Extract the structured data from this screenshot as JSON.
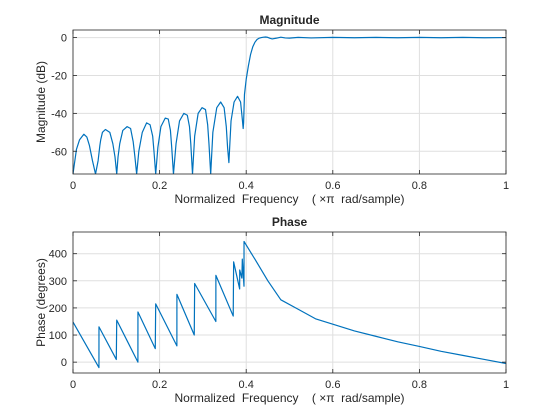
{
  "chart_data": [
    {
      "type": "line",
      "title": "Magnitude",
      "xlabel": "Normalized  Frequency    ( ×π  rad/sample)",
      "ylabel": "Magnitude (dB)",
      "xlim": [
        0,
        1
      ],
      "ylim": [
        -72,
        4
      ],
      "xticks": [
        0,
        0.2,
        0.4,
        0.6,
        0.8,
        1
      ],
      "xtick_labels": [
        "0",
        "0.2",
        "0.4",
        "0.6",
        "0.8",
        "1"
      ],
      "yticks": [
        0,
        -20,
        -40,
        -60
      ],
      "ytick_labels": [
        "0",
        "-20",
        "-40",
        "-60"
      ],
      "grid": true,
      "color": "#0072BD",
      "series": [
        {
          "x": [
            0,
            0.003,
            0.008,
            0.015,
            0.025,
            0.032,
            0.038,
            0.045,
            0.052,
            0.058,
            0.062,
            0.064,
            0.068,
            0.075,
            0.085,
            0.092,
            0.097,
            0.101,
            0.104,
            0.108,
            0.115,
            0.125,
            0.133,
            0.139,
            0.143,
            0.147,
            0.152,
            0.16,
            0.17,
            0.178,
            0.184,
            0.187,
            0.191,
            0.196,
            0.203,
            0.213,
            0.22,
            0.225,
            0.228,
            0.232,
            0.238,
            0.246,
            0.256,
            0.264,
            0.269,
            0.272,
            0.276,
            0.281,
            0.289,
            0.298,
            0.306,
            0.311,
            0.314,
            0.318,
            0.323,
            0.332,
            0.341,
            0.349,
            0.354,
            0.357,
            0.36,
            0.365,
            0.372,
            0.38,
            0.387,
            0.391,
            0.393,
            0.394,
            0.396,
            0.4,
            0.405,
            0.41,
            0.415,
            0.42,
            0.425,
            0.43,
            0.435,
            0.44,
            0.445,
            0.45,
            0.455,
            0.46,
            0.47,
            0.48,
            0.49,
            0.5,
            0.52,
            0.55,
            0.6,
            0.65,
            0.7,
            0.75,
            0.8,
            0.85,
            0.9,
            0.95,
            1.0
          ],
          "y": [
            -72,
            -67,
            -59,
            -54,
            -51,
            -52.5,
            -57,
            -65,
            -72,
            -65,
            -57,
            -54,
            -50,
            -48.5,
            -50,
            -56,
            -63,
            -72,
            -63,
            -56,
            -49,
            -47,
            -48,
            -55,
            -63,
            -72,
            -60,
            -50,
            -45,
            -46,
            -52,
            -60,
            -72,
            -58,
            -47,
            -42.5,
            -43,
            -49,
            -58,
            -72,
            -56,
            -44,
            -40,
            -41,
            -47,
            -56,
            -72,
            -52,
            -40,
            -37,
            -38,
            -46,
            -56,
            -72,
            -50,
            -37,
            -34,
            -37,
            -47,
            -58,
            -66,
            -44,
            -34,
            -31,
            -34,
            -43,
            -48,
            -45,
            -30,
            -22,
            -15,
            -9,
            -5,
            -2.5,
            -1,
            -0.3,
            0,
            0.2,
            0.3,
            0.1,
            -0.4,
            -0.7,
            -0.3,
            0.2,
            -0.2,
            -0.3,
            0.1,
            -0.2,
            0.1,
            -0.1,
            0.1,
            -0.1,
            0.1,
            -0.1,
            0.1,
            -0.1,
            0
          ]
        }
      ]
    },
    {
      "type": "line",
      "title": "Phase",
      "xlabel": "Normalized  Frequency    ( ×π  rad/sample)",
      "ylabel": "Phase (degrees)",
      "xlim": [
        0,
        1
      ],
      "ylim": [
        -40,
        480
      ],
      "xticks": [
        0,
        0.2,
        0.4,
        0.6,
        0.8,
        1
      ],
      "xtick_labels": [
        "0",
        "0.2",
        "0.4",
        "0.6",
        "0.8",
        "1"
      ],
      "yticks": [
        0,
        100,
        200,
        300,
        400
      ],
      "ytick_labels": [
        "0",
        "100",
        "200",
        "300",
        "400"
      ],
      "grid": true,
      "color": "#0072BD",
      "series": [
        {
          "x": [
            0,
            0.0599,
            0.06,
            0.1,
            0.101,
            0.1499,
            0.15,
            0.19,
            0.191,
            0.2399,
            0.24,
            0.28,
            0.281,
            0.3299,
            0.33,
            0.37,
            0.371,
            0.3849,
            0.385,
            0.39,
            0.391,
            0.3949,
            0.395,
            0.42,
            0.45,
            0.48,
            0.52,
            0.56,
            0.6,
            0.65,
            0.7,
            0.75,
            0.8,
            0.85,
            0.9,
            0.95,
            1.0
          ],
          "y": [
            148,
            -20,
            130,
            10,
            155,
            0,
            185,
            50,
            215,
            60,
            250,
            100,
            290,
            150,
            320,
            170,
            370,
            270,
            340,
            310,
            380,
            280,
            445,
            380,
            300,
            230,
            195,
            160,
            140,
            115,
            95,
            75,
            58,
            40,
            25,
            10,
            -5
          ]
        }
      ]
    }
  ]
}
